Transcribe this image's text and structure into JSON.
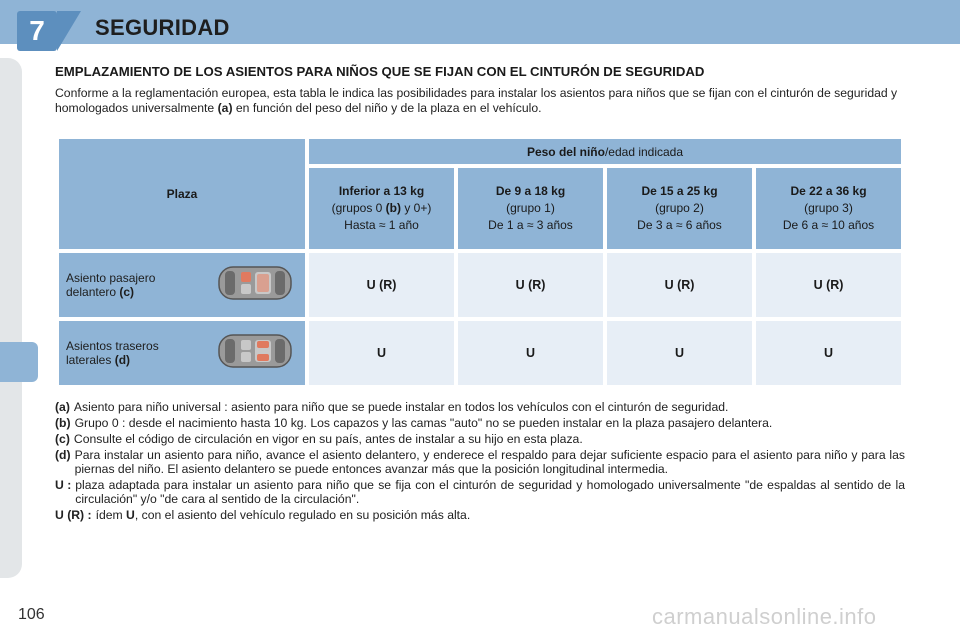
{
  "header": {
    "chapter_number": "7",
    "chapter_title": "SEGURIDAD"
  },
  "section_title": "EMPLAZAMIENTO DE LOS ASIENTOS PARA NIÑOS QUE SE FIJAN CON EL CINTURÓN DE SEGURIDAD",
  "intro": {
    "text_1": "Conforme a la reglamentación europea, esta tabla le indica las posibilidades para instalar los asientos para niños que se fijan con el cinturón de seguridad y homologados universalmente ",
    "ref": "(a)",
    "text_2": " en función del peso del niño y de la plaza en el vehículo."
  },
  "table": {
    "plaza_header": "Plaza",
    "peso_header_bold": "Peso del niño",
    "peso_header_rest": "/edad indicada",
    "groups": [
      {
        "title": "Inferior a 13 kg",
        "line2_a": "(grupos 0 ",
        "line2_b": "(b)",
        "line2_c": " y 0+)",
        "line3": "Hasta ≈ 1 año"
      },
      {
        "title": "De 9 a 18 kg",
        "line2_a": "(grupo 1)",
        "line2_b": "",
        "line2_c": "",
        "line3": "De 1 a ≈ 3 años"
      },
      {
        "title": "De 15 a 25 kg",
        "line2_a": "(grupo 2)",
        "line2_b": "",
        "line2_c": "",
        "line3": "De 3 a ≈ 6 años"
      },
      {
        "title": "De 22 a 36 kg",
        "line2_a": "(grupo 3)",
        "line2_b": "",
        "line2_c": "",
        "line3": "De 6 a ≈ 10 años"
      }
    ],
    "rows": [
      {
        "label_1": "Asiento pasajero",
        "label_2": "delantero ",
        "ref": "(c)",
        "values": [
          "U (R)",
          "U (R)",
          "U (R)",
          "U (R)"
        ]
      },
      {
        "label_1": "Asientos traseros",
        "label_2": "laterales ",
        "ref": "(d)",
        "values": [
          "U",
          "U",
          "U",
          "U"
        ]
      }
    ]
  },
  "notes": [
    {
      "key": "(a)",
      "text": "Asiento para niño universal : asiento para niño que se puede instalar en todos los vehículos con el cinturón de seguridad."
    },
    {
      "key": "(b)",
      "text": "Grupo 0 : desde el nacimiento hasta 10 kg. Los capazos y las camas \"auto\" no se pueden instalar en la plaza pasajero delantera."
    },
    {
      "key": "(c)",
      "text": "Consulte el código de circulación en vigor en su país, antes de instalar a su hijo en esta plaza."
    },
    {
      "key": "(d)",
      "text": "Para instalar un asiento para niño, avance el asiento delantero, y enderece el respaldo para dejar suficiente espacio para el asiento para niño y para las piernas del niño. El asiento delantero se puede entonces avanzar más que la posición longitudinal intermedia."
    },
    {
      "key": "U :",
      "text": "plaza adaptada para instalar un asiento para niño que se fija con el cinturón de seguridad y homologado universalmente \"de espaldas al sentido de la circulación\" y/o \"de cara al sentido de la circulación\"."
    },
    {
      "key": "U (R) :",
      "text_a": "ídem ",
      "text_b": "U",
      "text_c": ", con el asiento del vehículo regulado en su posición más alta."
    }
  ],
  "page_number": "106",
  "watermark": "carmanualsonline.info",
  "colors": {
    "header_blue": "#8fb4d6",
    "chapter_blue": "#5d8fbe",
    "cell_light": "#e7eef6",
    "seat_highlight": "#e07a5f"
  }
}
